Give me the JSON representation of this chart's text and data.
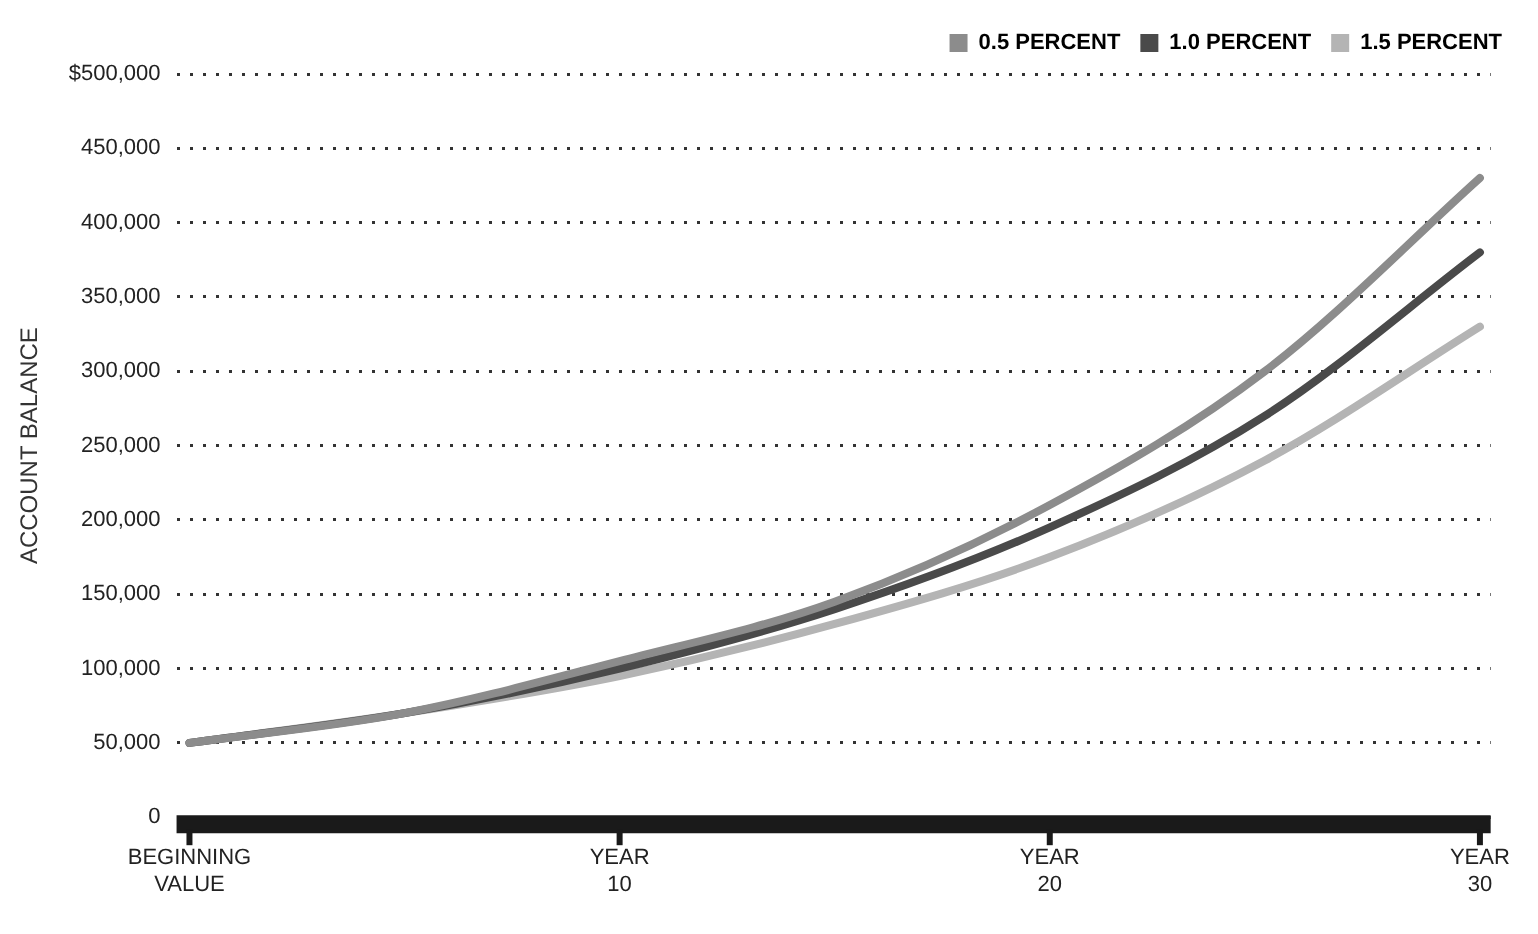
{
  "chart_data": {
    "type": "line",
    "ylabel": "ACCOUNT BALANCE",
    "categories": [
      "BEGINNING\nVALUE",
      null,
      "YEAR\n10",
      null,
      "YEAR\n20",
      null,
      "YEAR\n30"
    ],
    "series": [
      {
        "name": "0.5 PERCENT",
        "color": "#8c8c8c",
        "values": [
          50000,
          70000,
          105000,
          145000,
          210000,
          300000,
          430000
        ]
      },
      {
        "name": "1.0 PERCENT",
        "color": "#4a4a4a",
        "values": [
          50000,
          70000,
          100000,
          140000,
          195000,
          270000,
          380000
        ]
      },
      {
        "name": "1.5 PERCENT",
        "color": "#b4b4b4",
        "values": [
          50000,
          70000,
          95000,
          130000,
          175000,
          240000,
          330000
        ]
      }
    ],
    "ylim": [
      0,
      500000
    ],
    "yticks": [
      0,
      {
        "value": 50000,
        "label": "50,000"
      },
      {
        "value": 100000,
        "label": "100,000"
      },
      {
        "value": 150000,
        "label": "150,000"
      },
      {
        "value": 200000,
        "label": "200,000"
      },
      {
        "value": 250000,
        "label": "250,000"
      },
      {
        "value": 300000,
        "label": "300,000"
      },
      {
        "value": 350000,
        "label": "350,000"
      },
      {
        "value": 400000,
        "label": "400,000"
      },
      {
        "value": 450000,
        "label": "450,000"
      },
      {
        "value": 500000,
        "label": "$500,000"
      }
    ],
    "grid": "y",
    "legend": "top right",
    "marker": "none",
    "line_style": "solid"
  }
}
